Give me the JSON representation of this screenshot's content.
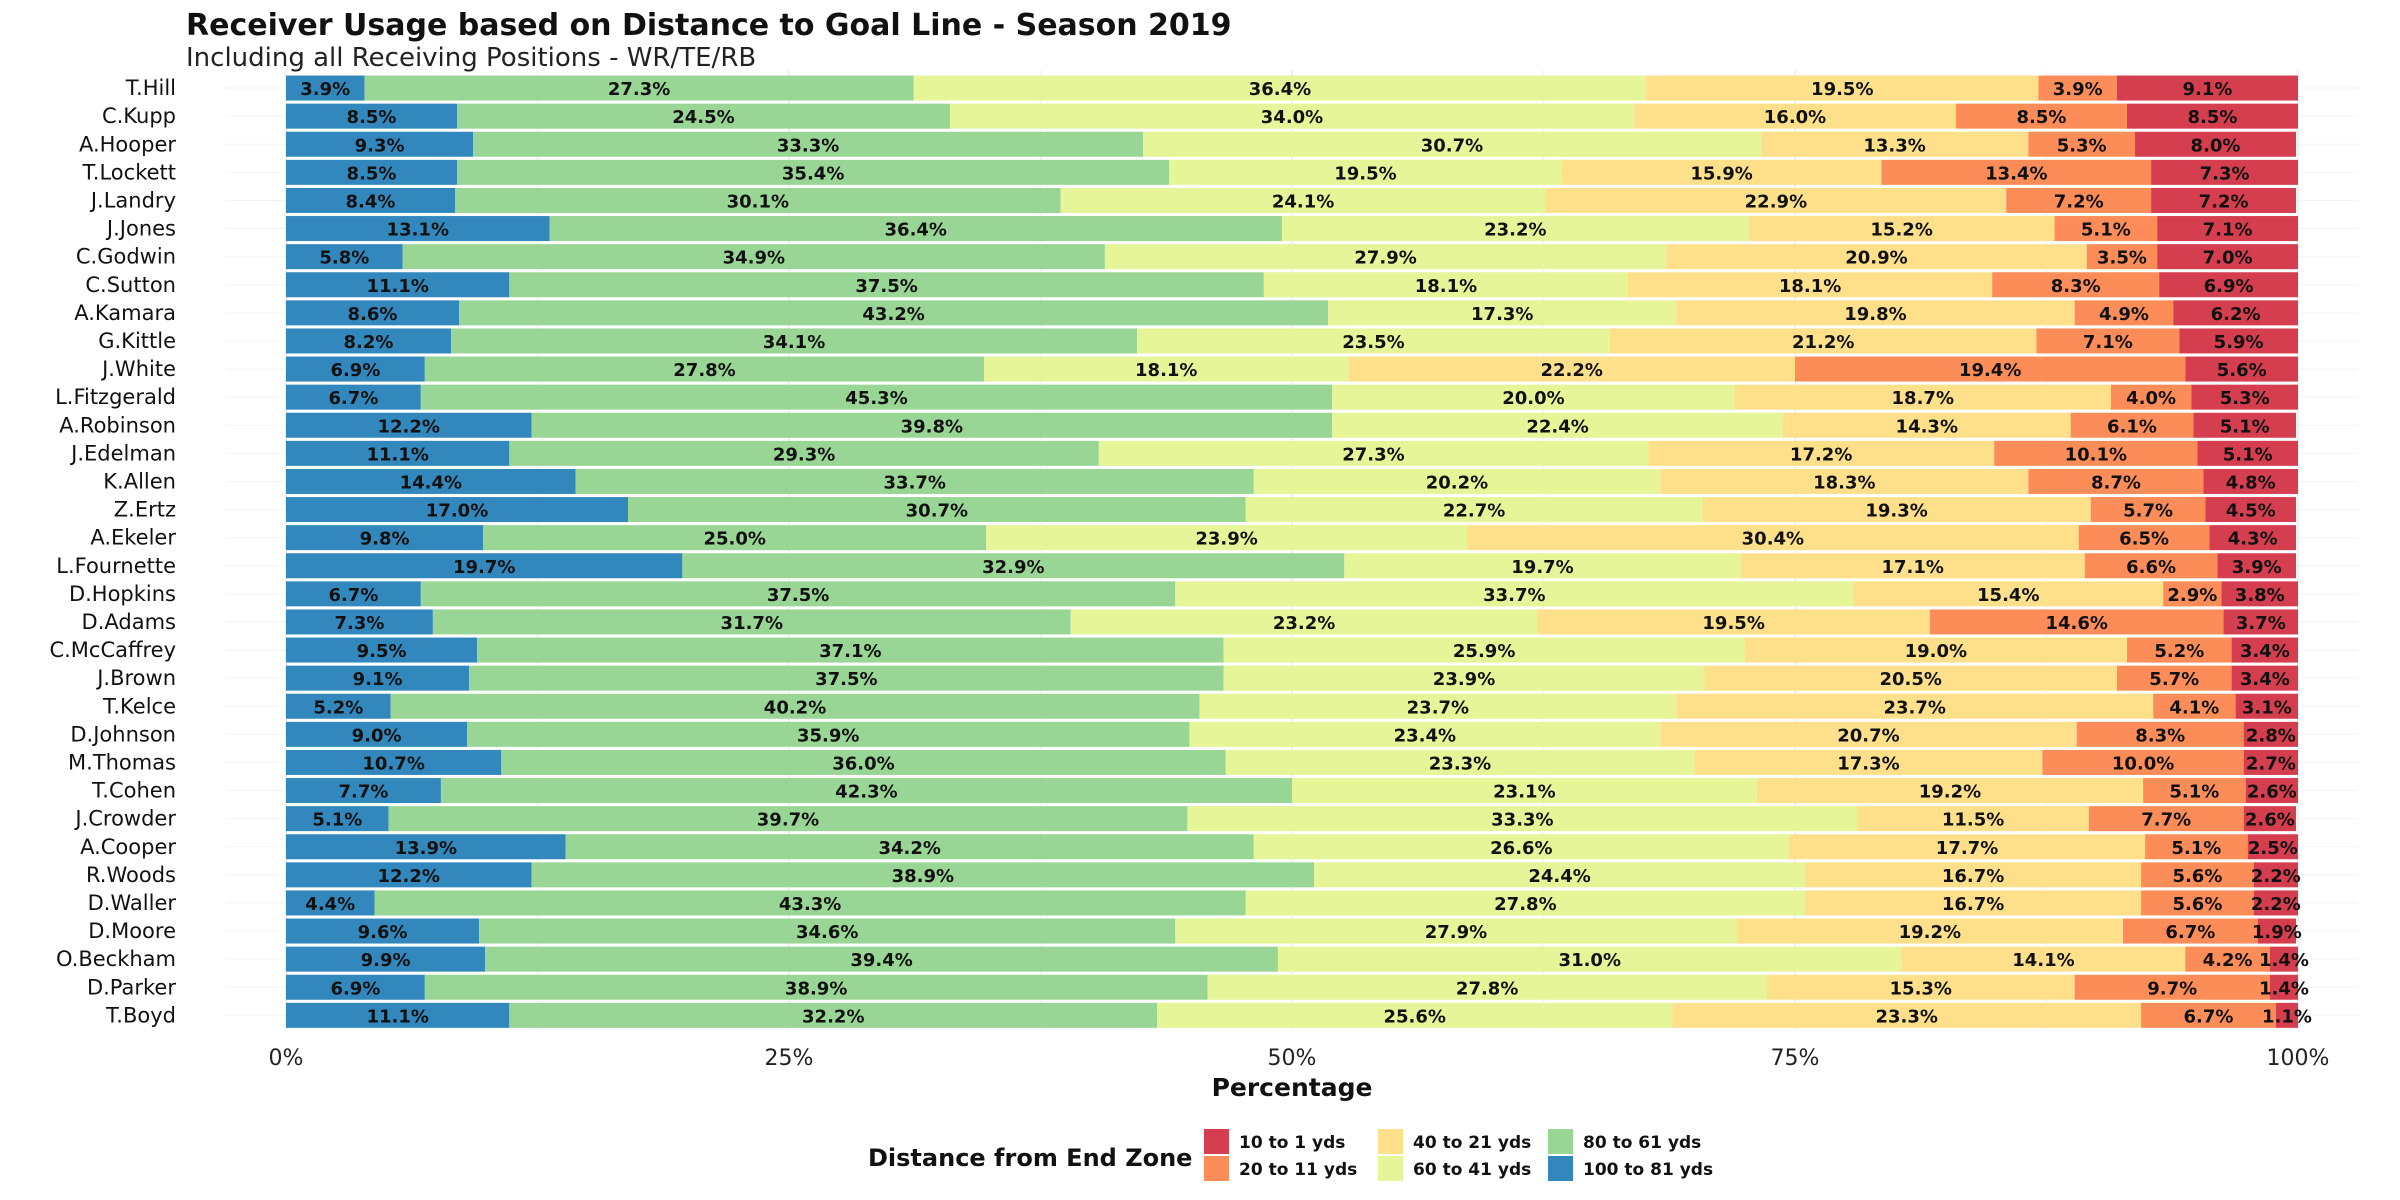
{
  "chart_data": {
    "type": "bar",
    "orientation": "horizontal",
    "stacked": true,
    "title": "Receiver Usage based on Distance to Goal Line - Season 2019",
    "subtitle": "Including all Receiving Positions - WR/TE/RB",
    "xlabel": "Percentage",
    "ylabel": "",
    "xlim": [
      0,
      100
    ],
    "x_ticks": [
      "0%",
      "25%",
      "50%",
      "75%",
      "100%"
    ],
    "grid": true,
    "legend_title": "Distance from End Zone",
    "legend_position": "bottom",
    "categories": [
      "T.Hill",
      "C.Kupp",
      "A.Hooper",
      "T.Lockett",
      "J.Landry",
      "J.Jones",
      "C.Godwin",
      "C.Sutton",
      "A.Kamara",
      "G.Kittle",
      "J.White",
      "L.Fitzgerald",
      "A.Robinson",
      "J.Edelman",
      "K.Allen",
      "Z.Ertz",
      "A.Ekeler",
      "L.Fournette",
      "D.Hopkins",
      "D.Adams",
      "C.McCaffrey",
      "J.Brown",
      "T.Kelce",
      "D.Johnson",
      "M.Thomas",
      "T.Cohen",
      "J.Crowder",
      "A.Cooper",
      "R.Woods",
      "D.Waller",
      "D.Moore",
      "O.Beckham",
      "D.Parker",
      "T.Boyd"
    ],
    "series": [
      {
        "name": "100 to 81 yds",
        "color": "#3288bd",
        "values": [
          3.9,
          8.5,
          9.3,
          8.5,
          8.4,
          13.1,
          5.8,
          11.1,
          8.6,
          8.2,
          6.9,
          6.7,
          12.2,
          11.1,
          14.4,
          17.0,
          9.8,
          19.7,
          6.7,
          7.3,
          9.5,
          9.1,
          5.2,
          9.0,
          10.7,
          7.7,
          5.1,
          13.9,
          12.2,
          4.4,
          9.6,
          9.9,
          6.9,
          11.1
        ]
      },
      {
        "name": "80 to 61 yds",
        "color": "#99d594",
        "values": [
          27.3,
          24.5,
          33.3,
          35.4,
          30.1,
          36.4,
          34.9,
          37.5,
          43.2,
          34.1,
          27.8,
          45.3,
          39.8,
          29.3,
          33.7,
          30.7,
          25.0,
          32.9,
          37.5,
          31.7,
          37.1,
          37.5,
          40.2,
          35.9,
          36.0,
          42.3,
          39.7,
          34.2,
          38.9,
          43.3,
          34.6,
          39.4,
          38.9,
          32.2
        ]
      },
      {
        "name": "60 to 41 yds",
        "color": "#e6f598",
        "values": [
          36.4,
          34.0,
          30.7,
          19.5,
          24.1,
          23.2,
          27.9,
          18.1,
          17.3,
          23.5,
          18.1,
          20.0,
          22.4,
          27.3,
          20.2,
          22.7,
          23.9,
          19.7,
          33.7,
          23.2,
          25.9,
          23.9,
          23.7,
          23.4,
          23.3,
          23.1,
          33.3,
          26.6,
          24.4,
          27.8,
          27.9,
          31.0,
          27.8,
          25.6
        ]
      },
      {
        "name": "40 to 21 yds",
        "color": "#fee08b",
        "values": [
          19.5,
          16.0,
          13.3,
          15.9,
          22.9,
          15.2,
          20.9,
          18.1,
          19.8,
          21.2,
          22.2,
          18.7,
          14.3,
          17.2,
          18.3,
          19.3,
          30.4,
          17.1,
          15.4,
          19.5,
          19.0,
          20.5,
          23.7,
          20.7,
          17.3,
          19.2,
          11.5,
          17.7,
          16.7,
          16.7,
          19.2,
          14.1,
          15.3,
          23.3
        ]
      },
      {
        "name": "20 to 11 yds",
        "color": "#fc8d59",
        "values": [
          3.9,
          8.5,
          5.3,
          13.4,
          7.2,
          5.1,
          3.5,
          8.3,
          4.9,
          7.1,
          19.4,
          4.0,
          6.1,
          10.1,
          8.7,
          5.7,
          6.5,
          6.6,
          2.9,
          14.6,
          5.2,
          5.7,
          4.1,
          8.3,
          10.0,
          5.1,
          7.7,
          5.1,
          5.6,
          5.6,
          6.7,
          4.2,
          9.7,
          6.7
        ]
      },
      {
        "name": "10 to 1 yds",
        "color": "#d53e4f",
        "values": [
          9.1,
          8.5,
          8.0,
          7.3,
          7.2,
          7.1,
          7.0,
          6.9,
          6.2,
          5.9,
          5.6,
          5.3,
          5.1,
          5.1,
          4.8,
          4.5,
          4.3,
          3.9,
          3.8,
          3.7,
          3.4,
          3.4,
          3.1,
          2.8,
          2.7,
          2.6,
          2.6,
          2.5,
          2.2,
          2.2,
          1.9,
          1.4,
          1.4,
          1.1
        ]
      }
    ],
    "legend_order": [
      "10 to 1 yds",
      "20 to 11 yds",
      "40 to 21 yds",
      "60 to 41 yds",
      "80 to 61 yds",
      "100 to 81 yds"
    ]
  }
}
